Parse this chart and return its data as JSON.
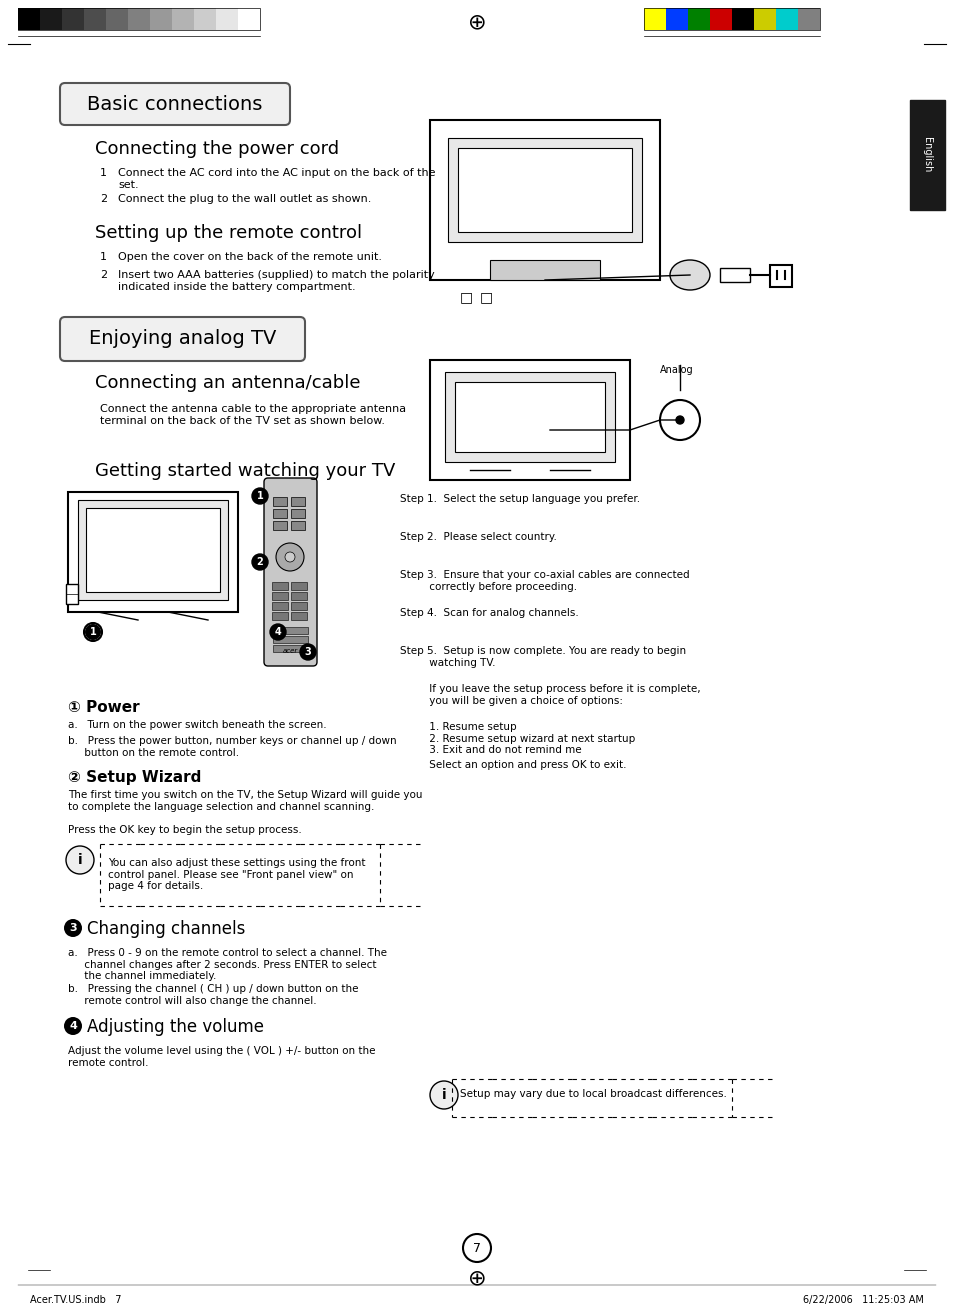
{
  "bg_color": "#ffffff",
  "page_number": "7",
  "header_grayscale_colors": [
    "#000000",
    "#1a1a1a",
    "#333333",
    "#4d4d4d",
    "#666666",
    "#808080",
    "#999999",
    "#b3b3b3",
    "#cccccc",
    "#e6e6e6",
    "#ffffff"
  ],
  "header_color_colors": [
    "#ffff00",
    "#0000ff",
    "#008000",
    "#ff0000",
    "#000000",
    "#ffff00",
    "#00ffff",
    "#808080"
  ],
  "section1_title": "Basic connections",
  "section2_title": "Enjoying analog TV",
  "subsection1_title": "Connecting the power cord",
  "subsection2_title": "Setting up the remote control",
  "subsection3_title": "Connecting an antenna/cable",
  "subsection4_title": "Getting started watching your TV",
  "power_cord_items": [
    "Connect the AC cord into the AC input on the back of the\nset.",
    "Connect the plug to the wall outlet as shown."
  ],
  "remote_items": [
    "Open the cover on the back of the remote unit.",
    "Insert two AAA batteries (supplied) to match the polarity\nindicated inside the battery compartment."
  ],
  "antenna_text": "Connect the antenna cable to the appropriate antenna\nterminal on the back of the TV set as shown below.",
  "analog_label": "Analog",
  "getting_started_steps": [
    "Step 1.  Select the setup language you prefer.",
    "Step 2.  Please select country.",
    "Step 3.  Ensure that your co-axial cables are connected\n         correctly before proceeding.",
    "Step 4.  Scan for analog channels.",
    "Step 5.  Setup is now complete. You are ready to begin\n         watching TV.",
    "         If you leave the setup process before it is complete,\n         you will be given a choice of options:",
    "         1. Resume setup\n         2. Resume setup wizard at next startup\n         3. Exit and do not remind me",
    "         Select an option and press OK to exit."
  ],
  "power_heading": "① Power",
  "power_a": "a.   Turn on the power switch beneath the screen.",
  "power_b": "b.   Press the power button, number keys or channel up / down\n     button on the remote control.",
  "setup_heading": "② Setup Wizard",
  "setup_text": "The first time you switch on the TV, the Setup Wizard will guide you\nto complete the language selection and channel scanning.\n\nPress the OK key to begin the setup process.",
  "changing_heading": "③ Changing channels",
  "changing_a": "a.   Press 0 - 9 on the remote control to select a channel. The\n     channel changes after 2 seconds. Press ENTER to select\n     the channel immediately.",
  "changing_b": "b.   Pressing the channel ( CH ) up / down button on the\n     remote control will also change the channel.",
  "volume_heading": "④ Adjusting the volume",
  "volume_text": "Adjust the volume level using the ( VOL ) +/- button on the\nremote control.",
  "note_text1": "You can also adjust these settings using the front\ncontrol panel. Please see \"Front panel view\" on\npage 4 for details.",
  "note_text2": "Setup may vary due to local broadcast differences.",
  "english_tab": "English",
  "footer_left": "Acer.TV.US.indb   7",
  "footer_right": "6/22/2006   11:25:03 AM"
}
